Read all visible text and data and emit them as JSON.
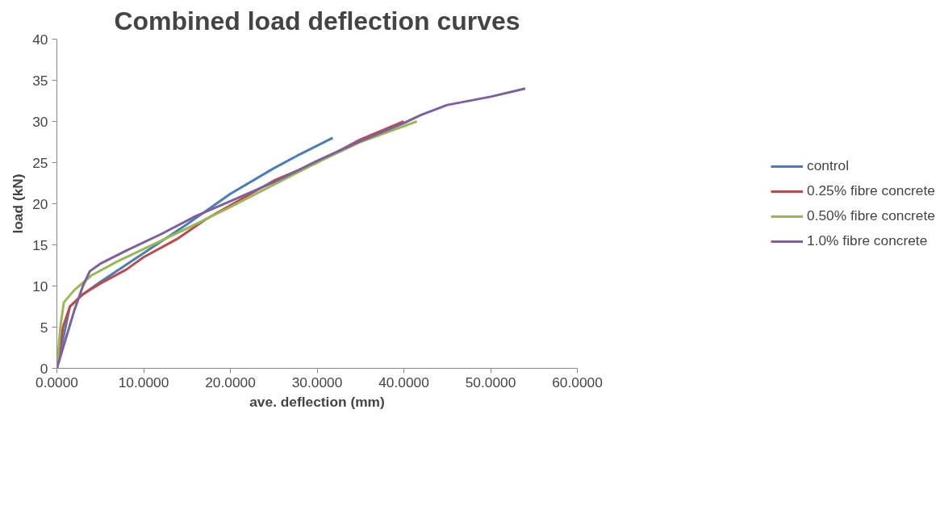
{
  "chart_data": {
    "type": "line",
    "title": "Combined load deflection curves",
    "xlabel": "ave. deflection (mm)",
    "ylabel": "load (kN)",
    "xlim": [
      0,
      60
    ],
    "xticks": [
      {
        "value": 0,
        "label": "0.0000"
      },
      {
        "value": 10,
        "label": "10.0000"
      },
      {
        "value": 20,
        "label": "20.0000"
      },
      {
        "value": 30,
        "label": "30.0000"
      },
      {
        "value": 40,
        "label": "40.0000"
      },
      {
        "value": 50,
        "label": "50.0000"
      },
      {
        "value": 60,
        "label": "60.0000"
      }
    ],
    "ylim": [
      0,
      40
    ],
    "yticks": [
      0,
      5,
      10,
      15,
      20,
      25,
      30,
      35,
      40
    ],
    "grid": false,
    "legend": "right",
    "marker": "none",
    "line_style": "solid",
    "series": [
      {
        "name": "control",
        "color": "#4a7ebb",
        "x": [
          0,
          1,
          1.5,
          3,
          5,
          10,
          15,
          20,
          25,
          28,
          31.8
        ],
        "values": [
          0,
          5,
          7.5,
          9,
          10.5,
          14,
          17.5,
          21.2,
          24.3,
          26,
          28
        ]
      },
      {
        "name": "0.25% fibre concrete",
        "color": "#be4b48",
        "x": [
          0,
          0.7,
          1.5,
          3,
          5,
          8,
          10,
          14,
          17,
          20,
          25,
          30,
          35,
          40
        ],
        "values": [
          0,
          5,
          7.5,
          9,
          10.3,
          12,
          13.5,
          15.8,
          18,
          19.8,
          22.8,
          25,
          27.8,
          30
        ]
      },
      {
        "name": "0.50% fibre concrete",
        "color": "#98b954",
        "x": [
          0,
          0.4,
          0.8,
          2,
          4,
          7,
          10,
          15,
          20,
          25,
          30,
          35,
          41.5
        ],
        "values": [
          0,
          5,
          8,
          9.5,
          11.3,
          13,
          14.5,
          17,
          19.6,
          22.3,
          25,
          27.5,
          30
        ]
      },
      {
        "name": "1.0% fibre concrete",
        "color": "#7d60a0",
        "x": [
          0,
          1,
          2,
          3,
          3.8,
          5,
          8,
          12,
          16,
          20,
          25,
          30,
          35,
          40,
          42,
          45,
          50,
          54
        ],
        "values": [
          0,
          3.5,
          7,
          10,
          11.8,
          12.7,
          14.3,
          16.3,
          18.5,
          20.3,
          22.6,
          25.2,
          27.6,
          29.8,
          30.8,
          32,
          33,
          34
        ]
      }
    ]
  }
}
